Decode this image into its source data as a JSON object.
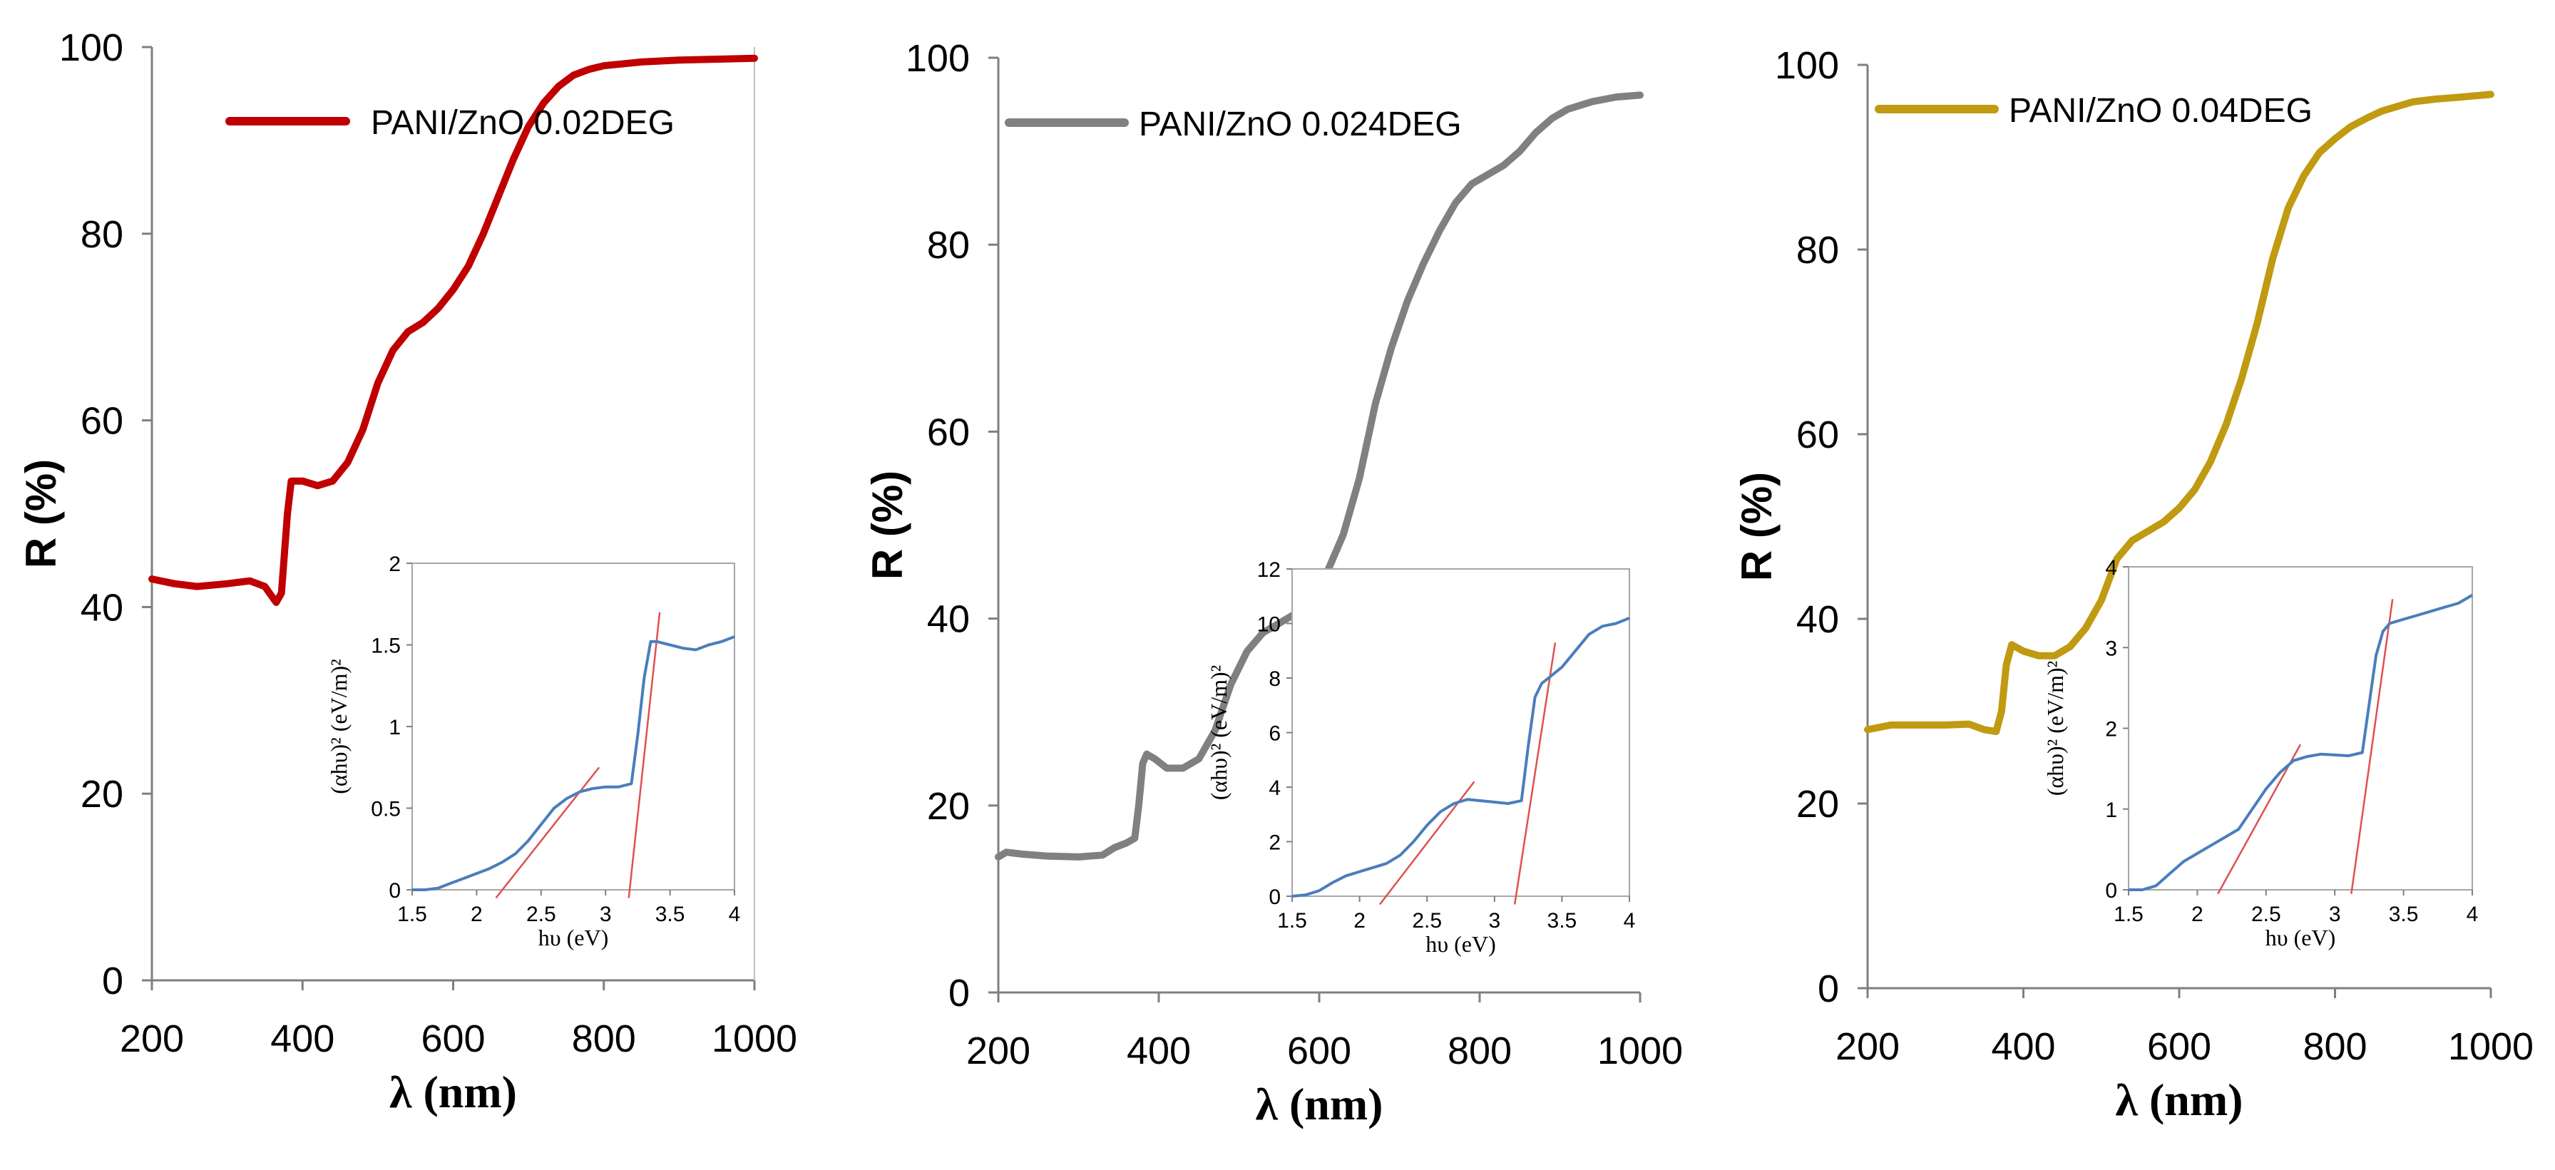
{
  "chart_data": [
    {
      "type": "line",
      "xlabel": "λ (nm)",
      "ylabel": "R (%)",
      "xlim": [
        200,
        1000
      ],
      "ylim": [
        0,
        100
      ],
      "xticks": [
        "200",
        "400",
        "600",
        "800",
        "1000"
      ],
      "yticks": [
        "0",
        "20",
        "40",
        "60",
        "80",
        "100"
      ],
      "grid": false,
      "legend_position": "top-right",
      "series": [
        {
          "name": "PANI/ZnO 0.02DEG",
          "color": "#c00000",
          "x": [
            200,
            230,
            260,
            300,
            330,
            350,
            365,
            372,
            380,
            385,
            400,
            420,
            440,
            460,
            480,
            500,
            520,
            540,
            560,
            580,
            600,
            620,
            640,
            660,
            680,
            700,
            720,
            740,
            760,
            780,
            800,
            850,
            900,
            950,
            1000
          ],
          "y": [
            43,
            42.5,
            42.2,
            42.5,
            42.8,
            42.2,
            40.5,
            41.5,
            50,
            53.5,
            53.5,
            53,
            53.5,
            55.5,
            59,
            64,
            67.5,
            69.5,
            70.5,
            72,
            74,
            76.5,
            80,
            84,
            88,
            91.5,
            94,
            95.8,
            97,
            97.6,
            98,
            98.4,
            98.6,
            98.7,
            98.8
          ]
        }
      ],
      "inset": {
        "type": "line",
        "xlabel": "hυ (eV)",
        "ylabel": "(αhυ)² (eV/m)²",
        "xlim": [
          1.5,
          4
        ],
        "ylim": [
          0,
          2
        ],
        "xticks": [
          "1.5",
          "2",
          "2.5",
          "3",
          "3.5",
          "4"
        ],
        "yticks": [
          "0",
          "0.5",
          "1",
          "1.5",
          "2"
        ],
        "curve_color": "#4a7ebb",
        "fit_color": "#e05050",
        "x": [
          1.5,
          1.6,
          1.7,
          1.8,
          1.9,
          2.0,
          2.1,
          2.2,
          2.3,
          2.4,
          2.5,
          2.6,
          2.7,
          2.8,
          2.9,
          3.0,
          3.1,
          3.2,
          3.25,
          3.3,
          3.35,
          3.4,
          3.5,
          3.6,
          3.7,
          3.8,
          3.9,
          4.0
        ],
        "y": [
          0,
          0,
          0.01,
          0.04,
          0.07,
          0.1,
          0.13,
          0.17,
          0.22,
          0.3,
          0.4,
          0.5,
          0.56,
          0.6,
          0.62,
          0.63,
          0.63,
          0.65,
          0.95,
          1.3,
          1.52,
          1.52,
          1.5,
          1.48,
          1.47,
          1.5,
          1.52,
          1.55
        ],
        "fits": [
          {
            "x": [
              2.15,
              2.95
            ],
            "y": [
              -0.05,
              0.75
            ]
          },
          {
            "x": [
              3.18,
              3.42
            ],
            "y": [
              -0.05,
              1.7
            ]
          }
        ]
      }
    },
    {
      "type": "line",
      "xlabel": "λ (nm)",
      "ylabel": "R (%)",
      "xlim": [
        200,
        1000
      ],
      "ylim": [
        0,
        100
      ],
      "xticks": [
        "200",
        "400",
        "600",
        "800",
        "1000"
      ],
      "yticks": [
        "0",
        "20",
        "40",
        "60",
        "80",
        "100"
      ],
      "grid": false,
      "legend_position": "top-left",
      "series": [
        {
          "name": "PANI/ZnO 0.024DEG",
          "color": "#808080",
          "x": [
            200,
            210,
            230,
            260,
            300,
            330,
            345,
            360,
            370,
            375,
            380,
            385,
            395,
            410,
            430,
            450,
            470,
            490,
            510,
            530,
            550,
            570,
            590,
            610,
            630,
            650,
            670,
            690,
            710,
            730,
            750,
            770,
            790,
            810,
            830,
            850,
            870,
            890,
            910,
            940,
            970,
            1000
          ],
          "y": [
            14.5,
            15,
            14.8,
            14.6,
            14.5,
            14.7,
            15.5,
            16,
            16.5,
            20,
            24.5,
            25.5,
            25,
            24,
            24,
            25,
            28,
            33,
            36.5,
            38.5,
            39.5,
            40.5,
            42.5,
            45,
            49,
            55,
            63,
            69,
            74,
            78,
            81.5,
            84.5,
            86.5,
            87.5,
            88.5,
            90,
            92,
            93.5,
            94.5,
            95.3,
            95.8,
            96
          ]
        }
      ],
      "inset": {
        "type": "line",
        "xlabel": "hυ (eV)",
        "ylabel": "(αhυ)² (eV/m)²",
        "xlim": [
          1.5,
          4
        ],
        "ylim": [
          0,
          12
        ],
        "xticks": [
          "1.5",
          "2",
          "2.5",
          "3",
          "3.5",
          "4"
        ],
        "yticks": [
          "0",
          "2",
          "4",
          "6",
          "8",
          "10",
          "12"
        ],
        "curve_color": "#4a7ebb",
        "fit_color": "#e05050",
        "x": [
          1.5,
          1.6,
          1.7,
          1.8,
          1.9,
          2.0,
          2.1,
          2.2,
          2.3,
          2.4,
          2.5,
          2.6,
          2.7,
          2.8,
          2.9,
          3.0,
          3.1,
          3.2,
          3.25,
          3.3,
          3.35,
          3.4,
          3.5,
          3.6,
          3.7,
          3.8,
          3.9,
          4.0
        ],
        "y": [
          0,
          0.05,
          0.2,
          0.5,
          0.75,
          0.9,
          1.05,
          1.2,
          1.5,
          2.0,
          2.6,
          3.1,
          3.4,
          3.55,
          3.5,
          3.45,
          3.4,
          3.5,
          5.5,
          7.3,
          7.8,
          8.0,
          8.4,
          9.0,
          9.6,
          9.9,
          10.0,
          10.2
        ],
        "fits": [
          {
            "x": [
              2.15,
              2.85
            ],
            "y": [
              -0.3,
              4.2
            ]
          },
          {
            "x": [
              3.15,
              3.45
            ],
            "y": [
              -0.3,
              9.3
            ]
          }
        ]
      }
    },
    {
      "type": "line",
      "xlabel": "λ (nm)",
      "ylabel": "R (%)",
      "xlim": [
        200,
        1000
      ],
      "ylim": [
        0,
        100
      ],
      "xticks": [
        "200",
        "400",
        "600",
        "800",
        "1000"
      ],
      "yticks": [
        "0",
        "20",
        "40",
        "60",
        "80",
        "100"
      ],
      "grid": false,
      "legend_position": "top-left",
      "series": [
        {
          "name": "PANI/ZnO 0.04DEG",
          "color": "#c09a10",
          "x": [
            200,
            230,
            260,
            300,
            330,
            350,
            365,
            372,
            378,
            385,
            400,
            420,
            440,
            460,
            480,
            500,
            520,
            540,
            560,
            580,
            600,
            620,
            640,
            660,
            680,
            700,
            720,
            740,
            760,
            780,
            800,
            820,
            840,
            860,
            880,
            900,
            930,
            960,
            1000
          ],
          "y": [
            28,
            28.5,
            28.5,
            28.5,
            28.6,
            28,
            27.8,
            30,
            35,
            37.2,
            36.5,
            36,
            36,
            37,
            39,
            42,
            46.5,
            48.5,
            49.5,
            50.5,
            52,
            54,
            57,
            61,
            66,
            72,
            79,
            84.5,
            88,
            90.5,
            92,
            93.3,
            94.2,
            95,
            95.5,
            96,
            96.3,
            96.5,
            96.8
          ]
        }
      ],
      "inset": {
        "type": "line",
        "xlabel": "hυ (eV)",
        "ylabel": "(αhυ)² (eV/m)²",
        "xlim": [
          1.5,
          4
        ],
        "ylim": [
          0,
          4
        ],
        "xticks": [
          "1.5",
          "2",
          "2.5",
          "3",
          "3.5",
          "4"
        ],
        "yticks": [
          "0",
          "1",
          "2",
          "3",
          "4"
        ],
        "curve_color": "#4a7ebb",
        "fit_color": "#e05050",
        "x": [
          1.5,
          1.6,
          1.7,
          1.8,
          1.9,
          2.0,
          2.1,
          2.2,
          2.3,
          2.4,
          2.5,
          2.6,
          2.7,
          2.8,
          2.9,
          3.0,
          3.1,
          3.2,
          3.25,
          3.3,
          3.35,
          3.4,
          3.5,
          3.6,
          3.7,
          3.8,
          3.9,
          4.0
        ],
        "y": [
          0,
          0,
          0.05,
          0.2,
          0.35,
          0.45,
          0.55,
          0.65,
          0.75,
          1.0,
          1.25,
          1.45,
          1.6,
          1.65,
          1.68,
          1.67,
          1.66,
          1.7,
          2.3,
          2.9,
          3.2,
          3.3,
          3.35,
          3.4,
          3.45,
          3.5,
          3.55,
          3.65
        ],
        "fits": [
          {
            "x": [
              2.15,
              2.75
            ],
            "y": [
              -0.05,
              1.8
            ]
          },
          {
            "x": [
              3.12,
              3.42
            ],
            "y": [
              -0.05,
              3.6
            ]
          }
        ]
      }
    }
  ]
}
